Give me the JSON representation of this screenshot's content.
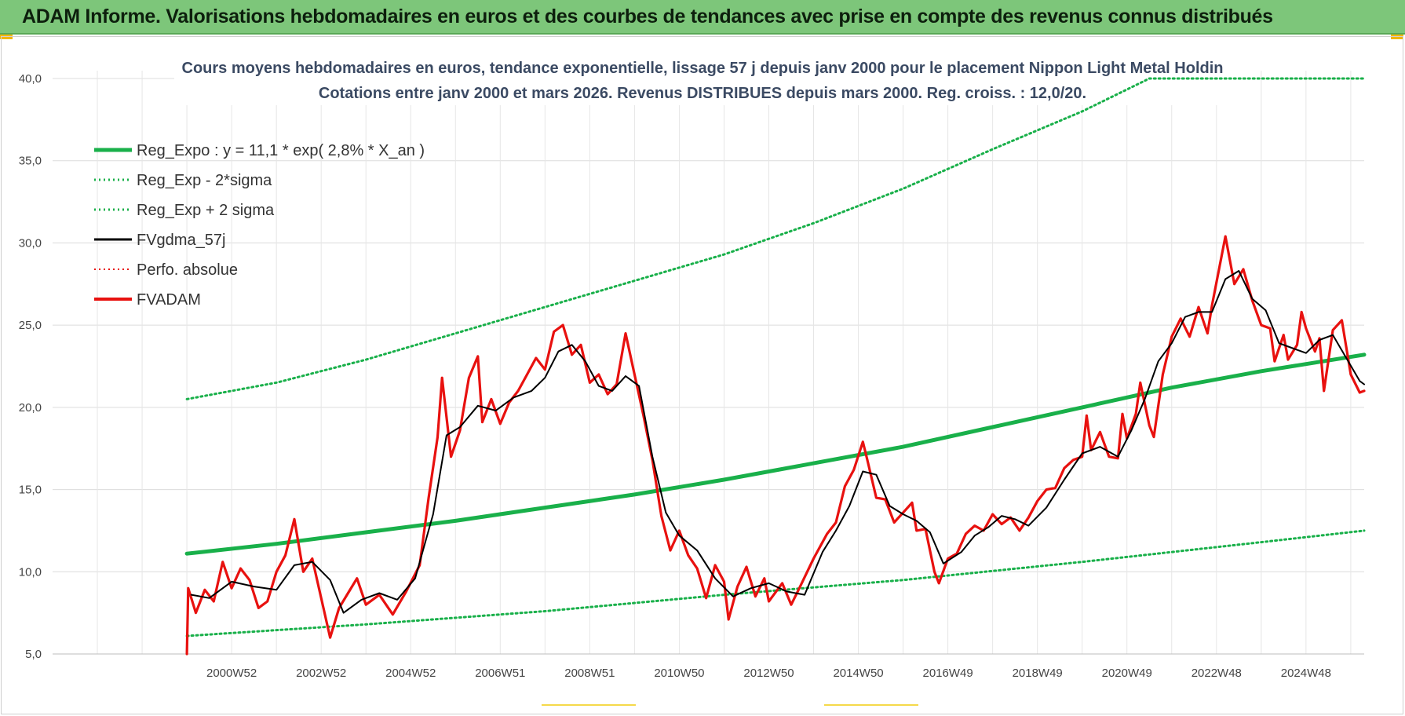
{
  "banner": {
    "title": "ADAM Informe. Valorisations hebdomadaires en euros et des courbes de tendances avec prise en compte des revenus connus distribués"
  },
  "colors": {
    "reg": "#19b04a",
    "fv": "#000000",
    "adam": "#e8110f",
    "perfo": "#e8110f",
    "banner": "#7dc67a"
  },
  "chart_data": {
    "type": "line",
    "title": "Cours moyens hebdomadaires en euros, tendance exponentielle, lissage 57 j depuis janv 2000 pour le placement Nippon Light Metal Holdin",
    "subtitle": "Cotations entre janv 2000 et mars 2026. Revenus DISTRIBUES depuis mars 2000. Reg. croiss. : 12,0/20.",
    "xlabel": "",
    "ylabel": "",
    "ylim": [
      5,
      40
    ],
    "xlim": [
      1997,
      2026.3
    ],
    "y_ticks": [
      "5,0",
      "10,0",
      "15,0",
      "20,0",
      "25,0",
      "30,0",
      "35,0",
      "40,0"
    ],
    "x_ticks": [
      {
        "label": "2000W52",
        "x": 2001
      },
      {
        "label": "2002W52",
        "x": 2003
      },
      {
        "label": "2004W52",
        "x": 2005
      },
      {
        "label": "2006W51",
        "x": 2007
      },
      {
        "label": "2008W51",
        "x": 2009
      },
      {
        "label": "2010W50",
        "x": 2011
      },
      {
        "label": "2012W50",
        "x": 2013
      },
      {
        "label": "2014W50",
        "x": 2015
      },
      {
        "label": "2016W49",
        "x": 2017
      },
      {
        "label": "2018W49",
        "x": 2019
      },
      {
        "label": "2020W49",
        "x": 2021
      },
      {
        "label": "2022W48",
        "x": 2023
      },
      {
        "label": "2024W48",
        "x": 2025
      }
    ],
    "grid": true,
    "legend": "top-left",
    "series": [
      {
        "name": "Reg_Expo : y = 11,1 * exp( 2,8% *  X_an )",
        "style": "solid-thick",
        "color": "#19b04a",
        "points": [
          [
            2000,
            11.1
          ],
          [
            2002,
            11.7
          ],
          [
            2004,
            12.4
          ],
          [
            2006,
            13.1
          ],
          [
            2008,
            13.9
          ],
          [
            2010,
            14.7
          ],
          [
            2012,
            15.6
          ],
          [
            2014,
            16.6
          ],
          [
            2016,
            17.6
          ],
          [
            2018,
            18.8
          ],
          [
            2020,
            20.0
          ],
          [
            2022,
            21.2
          ],
          [
            2024,
            22.2
          ],
          [
            2026.3,
            23.2
          ]
        ]
      },
      {
        "name": "Reg_Exp - 2*sigma",
        "style": "dotted",
        "color": "#19b04a",
        "points": [
          [
            2000,
            6.1
          ],
          [
            2004,
            6.8
          ],
          [
            2008,
            7.6
          ],
          [
            2012,
            8.6
          ],
          [
            2016,
            9.5
          ],
          [
            2020,
            10.6
          ],
          [
            2024,
            11.8
          ],
          [
            2026.3,
            12.5
          ]
        ]
      },
      {
        "name": "Reg_Exp + 2 sigma",
        "style": "dotted",
        "color": "#19b04a",
        "points": [
          [
            2000,
            20.5
          ],
          [
            2002,
            21.5
          ],
          [
            2004,
            22.9
          ],
          [
            2006,
            24.5
          ],
          [
            2008,
            26.1
          ],
          [
            2010,
            27.7
          ],
          [
            2012,
            29.3
          ],
          [
            2014,
            31.2
          ],
          [
            2016,
            33.3
          ],
          [
            2018,
            35.7
          ],
          [
            2020,
            38.0
          ],
          [
            2021.5,
            40.0
          ],
          [
            2026.3,
            40.0
          ]
        ]
      },
      {
        "name": "FVgdma_57j",
        "style": "solid",
        "color": "#000000",
        "points": [
          [
            2000.1,
            8.6
          ],
          [
            2000.5,
            8.4
          ],
          [
            2001,
            9.4
          ],
          [
            2001.5,
            9.1
          ],
          [
            2002,
            8.9
          ],
          [
            2002.4,
            10.4
          ],
          [
            2002.8,
            10.6
          ],
          [
            2003.2,
            9.5
          ],
          [
            2003.5,
            7.5
          ],
          [
            2003.9,
            8.3
          ],
          [
            2004.3,
            8.7
          ],
          [
            2004.7,
            8.3
          ],
          [
            2005.1,
            9.6
          ],
          [
            2005.5,
            13.5
          ],
          [
            2005.8,
            18.3
          ],
          [
            2006.1,
            18.8
          ],
          [
            2006.5,
            20.1
          ],
          [
            2006.9,
            19.8
          ],
          [
            2007.3,
            20.6
          ],
          [
            2007.7,
            21.0
          ],
          [
            2008.0,
            21.8
          ],
          [
            2008.3,
            23.4
          ],
          [
            2008.6,
            23.8
          ],
          [
            2008.9,
            22.8
          ],
          [
            2009.2,
            21.3
          ],
          [
            2009.5,
            21.0
          ],
          [
            2009.8,
            21.9
          ],
          [
            2010.1,
            21.3
          ],
          [
            2010.4,
            17.0
          ],
          [
            2010.7,
            13.6
          ],
          [
            2011.0,
            12.2
          ],
          [
            2011.4,
            11.3
          ],
          [
            2011.8,
            9.6
          ],
          [
            2012.2,
            8.5
          ],
          [
            2012.6,
            9.0
          ],
          [
            2013.0,
            9.3
          ],
          [
            2013.4,
            8.8
          ],
          [
            2013.8,
            8.6
          ],
          [
            2014.2,
            11.2
          ],
          [
            2014.5,
            12.5
          ],
          [
            2014.8,
            14.0
          ],
          [
            2015.1,
            16.1
          ],
          [
            2015.4,
            15.9
          ],
          [
            2015.7,
            14.0
          ],
          [
            2016.0,
            13.5
          ],
          [
            2016.3,
            13.1
          ],
          [
            2016.6,
            12.4
          ],
          [
            2016.9,
            10.5
          ],
          [
            2017.3,
            11.2
          ],
          [
            2017.6,
            12.2
          ],
          [
            2017.9,
            12.7
          ],
          [
            2018.2,
            13.4
          ],
          [
            2018.5,
            13.2
          ],
          [
            2018.8,
            12.8
          ],
          [
            2019.2,
            13.9
          ],
          [
            2019.6,
            15.6
          ],
          [
            2020.0,
            17.2
          ],
          [
            2020.4,
            17.6
          ],
          [
            2020.8,
            17.0
          ],
          [
            2021.1,
            18.6
          ],
          [
            2021.4,
            20.5
          ],
          [
            2021.7,
            22.8
          ],
          [
            2022.0,
            23.9
          ],
          [
            2022.3,
            25.5
          ],
          [
            2022.6,
            25.8
          ],
          [
            2022.9,
            25.8
          ],
          [
            2023.2,
            27.8
          ],
          [
            2023.5,
            28.3
          ],
          [
            2023.8,
            26.6
          ],
          [
            2024.1,
            25.9
          ],
          [
            2024.4,
            23.9
          ],
          [
            2024.7,
            23.6
          ],
          [
            2025.0,
            23.3
          ],
          [
            2025.3,
            24.1
          ],
          [
            2025.6,
            24.4
          ],
          [
            2025.9,
            23.0
          ],
          [
            2026.2,
            21.6
          ],
          [
            2026.3,
            21.4
          ]
        ]
      },
      {
        "name": "Perfo. absolue",
        "style": "dotted",
        "color": "#e8110f",
        "points": []
      },
      {
        "name": "FVADAM",
        "style": "solid-thick",
        "color": "#e8110f",
        "points": [
          [
            2000,
            5.0
          ],
          [
            2000.03,
            9.0
          ],
          [
            2000.2,
            7.5
          ],
          [
            2000.4,
            8.9
          ],
          [
            2000.6,
            8.2
          ],
          [
            2000.8,
            10.6
          ],
          [
            2001,
            9.0
          ],
          [
            2001.2,
            10.2
          ],
          [
            2001.4,
            9.5
          ],
          [
            2001.6,
            7.8
          ],
          [
            2001.8,
            8.2
          ],
          [
            2002.0,
            10.0
          ],
          [
            2002.2,
            11.0
          ],
          [
            2002.4,
            13.2
          ],
          [
            2002.6,
            10.0
          ],
          [
            2002.8,
            10.8
          ],
          [
            2003.0,
            8.4
          ],
          [
            2003.2,
            6.0
          ],
          [
            2003.4,
            7.8
          ],
          [
            2003.6,
            8.7
          ],
          [
            2003.8,
            9.6
          ],
          [
            2004.0,
            8.0
          ],
          [
            2004.3,
            8.6
          ],
          [
            2004.6,
            7.4
          ],
          [
            2004.9,
            8.8
          ],
          [
            2005.2,
            10.4
          ],
          [
            2005.4,
            14.5
          ],
          [
            2005.6,
            18.2
          ],
          [
            2005.7,
            21.8
          ],
          [
            2005.9,
            17.0
          ],
          [
            2006.1,
            18.6
          ],
          [
            2006.3,
            21.8
          ],
          [
            2006.5,
            23.1
          ],
          [
            2006.6,
            19.1
          ],
          [
            2006.8,
            20.5
          ],
          [
            2007.0,
            19.0
          ],
          [
            2007.2,
            20.3
          ],
          [
            2007.4,
            21.0
          ],
          [
            2007.6,
            22.0
          ],
          [
            2007.8,
            23.0
          ],
          [
            2008.0,
            22.3
          ],
          [
            2008.2,
            24.6
          ],
          [
            2008.4,
            25.0
          ],
          [
            2008.6,
            23.2
          ],
          [
            2008.8,
            23.8
          ],
          [
            2009.0,
            21.5
          ],
          [
            2009.2,
            22.0
          ],
          [
            2009.4,
            20.8
          ],
          [
            2009.6,
            21.4
          ],
          [
            2009.8,
            24.5
          ],
          [
            2010.0,
            22.0
          ],
          [
            2010.2,
            19.5
          ],
          [
            2010.4,
            16.8
          ],
          [
            2010.6,
            13.4
          ],
          [
            2010.8,
            11.3
          ],
          [
            2011.0,
            12.5
          ],
          [
            2011.2,
            11.0
          ],
          [
            2011.4,
            10.2
          ],
          [
            2011.6,
            8.4
          ],
          [
            2011.8,
            10.4
          ],
          [
            2012.0,
            9.4
          ],
          [
            2012.1,
            7.1
          ],
          [
            2012.3,
            9.1
          ],
          [
            2012.5,
            10.3
          ],
          [
            2012.7,
            8.5
          ],
          [
            2012.9,
            9.6
          ],
          [
            2013.0,
            8.2
          ],
          [
            2013.3,
            9.3
          ],
          [
            2013.5,
            8.0
          ],
          [
            2013.7,
            9.1
          ],
          [
            2014.0,
            10.8
          ],
          [
            2014.3,
            12.3
          ],
          [
            2014.5,
            13.0
          ],
          [
            2014.7,
            15.2
          ],
          [
            2014.9,
            16.2
          ],
          [
            2015.1,
            17.9
          ],
          [
            2015.2,
            16.8
          ],
          [
            2015.4,
            14.5
          ],
          [
            2015.6,
            14.4
          ],
          [
            2015.8,
            13.0
          ],
          [
            2016.0,
            13.6
          ],
          [
            2016.2,
            14.2
          ],
          [
            2016.3,
            12.5
          ],
          [
            2016.5,
            12.6
          ],
          [
            2016.7,
            10.0
          ],
          [
            2016.8,
            9.3
          ],
          [
            2017.0,
            10.8
          ],
          [
            2017.2,
            11.1
          ],
          [
            2017.4,
            12.3
          ],
          [
            2017.6,
            12.8
          ],
          [
            2017.8,
            12.5
          ],
          [
            2018.0,
            13.5
          ],
          [
            2018.2,
            12.9
          ],
          [
            2018.4,
            13.3
          ],
          [
            2018.6,
            12.5
          ],
          [
            2018.8,
            13.3
          ],
          [
            2019.0,
            14.3
          ],
          [
            2019.2,
            15.0
          ],
          [
            2019.4,
            15.1
          ],
          [
            2019.6,
            16.3
          ],
          [
            2019.8,
            16.8
          ],
          [
            2020.0,
            17.0
          ],
          [
            2020.1,
            19.5
          ],
          [
            2020.2,
            17.4
          ],
          [
            2020.4,
            18.5
          ],
          [
            2020.6,
            17.0
          ],
          [
            2020.8,
            16.9
          ],
          [
            2020.9,
            19.6
          ],
          [
            2021.0,
            18.1
          ],
          [
            2021.2,
            19.6
          ],
          [
            2021.3,
            21.5
          ],
          [
            2021.5,
            18.9
          ],
          [
            2021.6,
            18.2
          ],
          [
            2021.8,
            22.0
          ],
          [
            2022.0,
            24.3
          ],
          [
            2022.2,
            25.4
          ],
          [
            2022.4,
            24.3
          ],
          [
            2022.6,
            26.1
          ],
          [
            2022.8,
            24.5
          ],
          [
            2022.9,
            26.2
          ],
          [
            2023.1,
            29.0
          ],
          [
            2023.2,
            30.4
          ],
          [
            2023.4,
            27.5
          ],
          [
            2023.6,
            28.4
          ],
          [
            2023.8,
            26.5
          ],
          [
            2024.0,
            25.0
          ],
          [
            2024.2,
            24.8
          ],
          [
            2024.3,
            22.8
          ],
          [
            2024.5,
            24.4
          ],
          [
            2024.6,
            22.9
          ],
          [
            2024.8,
            23.8
          ],
          [
            2024.9,
            25.8
          ],
          [
            2025.0,
            24.8
          ],
          [
            2025.2,
            23.4
          ],
          [
            2025.3,
            24.2
          ],
          [
            2025.4,
            21.0
          ],
          [
            2025.6,
            24.7
          ],
          [
            2025.8,
            25.3
          ],
          [
            2026.0,
            22.0
          ],
          [
            2026.2,
            20.9
          ],
          [
            2026.3,
            21.0
          ]
        ]
      }
    ]
  }
}
